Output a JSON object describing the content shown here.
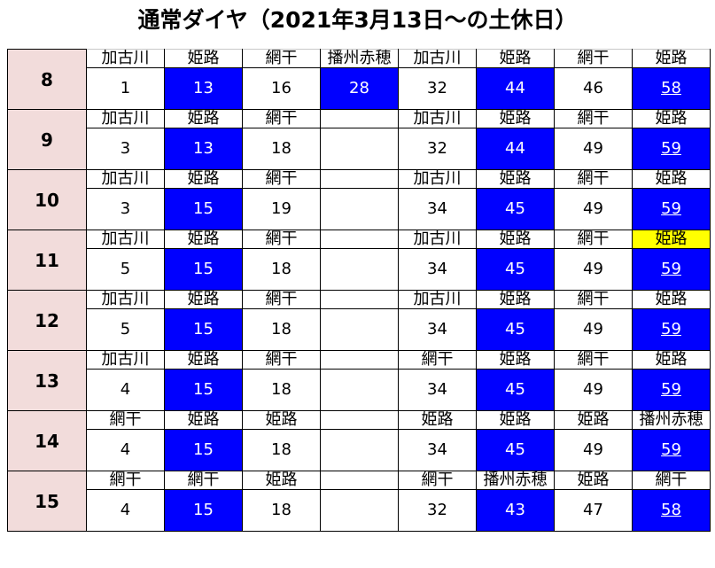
{
  "title": "通常ダイヤ（2021年3月13日〜の土休日）",
  "colors": {
    "highlight": "#0000ff",
    "hour_bg": "#f2dcdb",
    "marker": "#ffff00"
  },
  "rows": [
    {
      "hour": "8",
      "cells": [
        {
          "dest": "加古川",
          "min": "1"
        },
        {
          "dest": "姫路",
          "min": "13",
          "blue": true
        },
        {
          "dest": "網干",
          "min": "16"
        },
        {
          "dest": "播州赤穂",
          "min": "28",
          "blue": true
        },
        {
          "dest": "加古川",
          "min": "32"
        },
        {
          "dest": "姫路",
          "min": "44",
          "blue": true
        },
        {
          "dest": "網干",
          "min": "46"
        },
        {
          "dest": "姫路",
          "min": "58",
          "blue": true,
          "underline": true
        }
      ]
    },
    {
      "hour": "9",
      "cells": [
        {
          "dest": "加古川",
          "min": "3"
        },
        {
          "dest": "姫路",
          "min": "13",
          "blue": true
        },
        {
          "dest": "網干",
          "min": "18"
        },
        {
          "dest": "",
          "min": ""
        },
        {
          "dest": "加古川",
          "min": "32"
        },
        {
          "dest": "姫路",
          "min": "44",
          "blue": true
        },
        {
          "dest": "網干",
          "min": "49"
        },
        {
          "dest": "姫路",
          "min": "59",
          "blue": true,
          "underline": true
        }
      ]
    },
    {
      "hour": "10",
      "cells": [
        {
          "dest": "加古川",
          "min": "3"
        },
        {
          "dest": "姫路",
          "min": "15",
          "blue": true
        },
        {
          "dest": "網干",
          "min": "19"
        },
        {
          "dest": "",
          "min": ""
        },
        {
          "dest": "加古川",
          "min": "34"
        },
        {
          "dest": "姫路",
          "min": "45",
          "blue": true
        },
        {
          "dest": "網干",
          "min": "49"
        },
        {
          "dest": "姫路",
          "min": "59",
          "blue": true,
          "underline": true
        }
      ]
    },
    {
      "hour": "11",
      "cells": [
        {
          "dest": "加古川",
          "min": "5"
        },
        {
          "dest": "姫路",
          "min": "15",
          "blue": true
        },
        {
          "dest": "網干",
          "min": "18"
        },
        {
          "dest": "",
          "min": ""
        },
        {
          "dest": "加古川",
          "min": "34"
        },
        {
          "dest": "姫路",
          "min": "45",
          "blue": true
        },
        {
          "dest": "網干",
          "min": "49"
        },
        {
          "dest": "姫路",
          "min": "59",
          "blue": true,
          "underline": true,
          "yellow": true
        }
      ]
    },
    {
      "hour": "12",
      "cells": [
        {
          "dest": "加古川",
          "min": "5"
        },
        {
          "dest": "姫路",
          "min": "15",
          "blue": true
        },
        {
          "dest": "網干",
          "min": "18"
        },
        {
          "dest": "",
          "min": ""
        },
        {
          "dest": "加古川",
          "min": "34"
        },
        {
          "dest": "姫路",
          "min": "45",
          "blue": true
        },
        {
          "dest": "網干",
          "min": "49"
        },
        {
          "dest": "姫路",
          "min": "59",
          "blue": true,
          "underline": true
        }
      ]
    },
    {
      "hour": "13",
      "cells": [
        {
          "dest": "加古川",
          "min": "4"
        },
        {
          "dest": "姫路",
          "min": "15",
          "blue": true
        },
        {
          "dest": "網干",
          "min": "18"
        },
        {
          "dest": "",
          "min": ""
        },
        {
          "dest": "網干",
          "min": "34"
        },
        {
          "dest": "姫路",
          "min": "45",
          "blue": true
        },
        {
          "dest": "網干",
          "min": "49"
        },
        {
          "dest": "姫路",
          "min": "59",
          "blue": true,
          "underline": true
        }
      ]
    },
    {
      "hour": "14",
      "cells": [
        {
          "dest": "網干",
          "min": "4"
        },
        {
          "dest": "姫路",
          "min": "15",
          "blue": true
        },
        {
          "dest": "姫路",
          "min": "18"
        },
        {
          "dest": "",
          "min": ""
        },
        {
          "dest": "姫路",
          "min": "34"
        },
        {
          "dest": "姫路",
          "min": "45",
          "blue": true
        },
        {
          "dest": "姫路",
          "min": "49"
        },
        {
          "dest": "播州赤穂",
          "min": "59",
          "blue": true,
          "underline": true
        }
      ]
    },
    {
      "hour": "15",
      "cells": [
        {
          "dest": "網干",
          "min": "4"
        },
        {
          "dest": "網干",
          "min": "15",
          "blue": true
        },
        {
          "dest": "姫路",
          "min": "18"
        },
        {
          "dest": "",
          "min": ""
        },
        {
          "dest": "網干",
          "min": "32"
        },
        {
          "dest": "播州赤穂",
          "min": "43",
          "blue": true
        },
        {
          "dest": "姫路",
          "min": "47"
        },
        {
          "dest": "網干",
          "min": "58",
          "blue": true,
          "underline": true
        }
      ]
    }
  ]
}
